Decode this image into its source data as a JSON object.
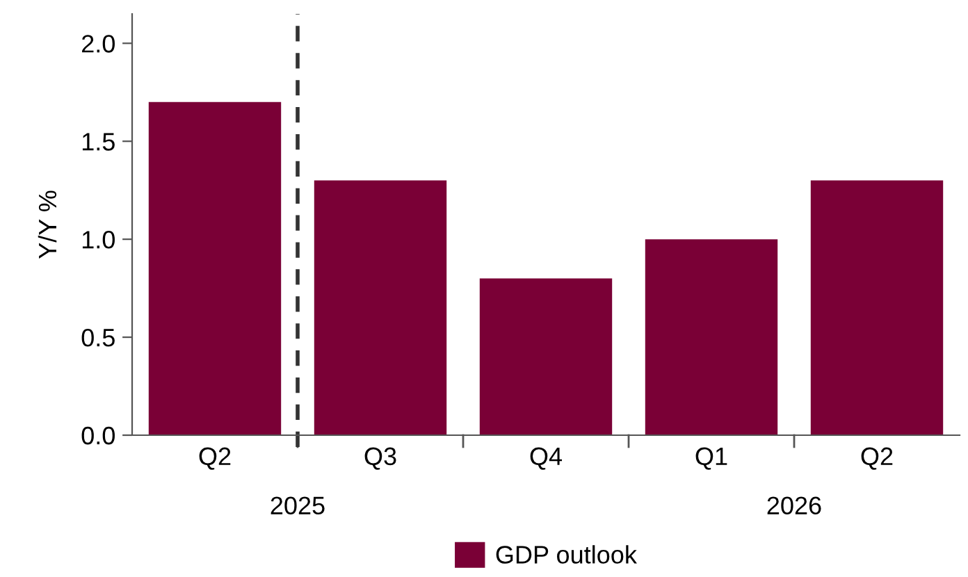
{
  "chart_data": {
    "type": "bar",
    "ylabel": "Y/Y %",
    "categories": [
      "Q2",
      "Q3",
      "Q4",
      "Q1",
      "Q2"
    ],
    "series": [
      {
        "name": "GDP outlook",
        "color": "#7a0036",
        "values": [
          1.7,
          1.3,
          0.8,
          1.0,
          1.3
        ]
      }
    ],
    "ylim": [
      0,
      2.15
    ],
    "yticks": [
      {
        "value": 0,
        "label": "0.0"
      },
      {
        "value": 0.5,
        "label": "0.5"
      },
      {
        "value": 1,
        "label": "1.0"
      },
      {
        "value": 1.5,
        "label": "1.5"
      },
      {
        "value": 2,
        "label": "2.0"
      }
    ],
    "annotations": [
      "2025",
      "2026"
    ],
    "legend": "bottom",
    "grid": false
  }
}
